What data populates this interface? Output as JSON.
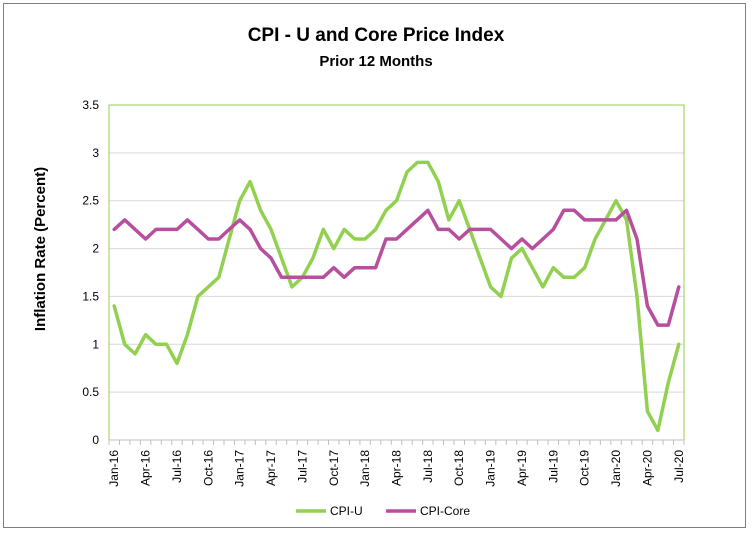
{
  "chart_data": {
    "type": "line",
    "title": "CPI - U and Core Price Index",
    "subtitle": "Prior 12 Months",
    "xlabel": "",
    "ylabel": "Inflation Rate (Percent)",
    "ylim": [
      0,
      3.5
    ],
    "yticks": [
      "0",
      "0.5",
      "1",
      "1.5",
      "2",
      "2.5",
      "3",
      "3.5"
    ],
    "grid": true,
    "legend": "bottom",
    "x": [
      "Jan-16",
      "Feb-16",
      "Mar-16",
      "Apr-16",
      "May-16",
      "Jun-16",
      "Jul-16",
      "Aug-16",
      "Sep-16",
      "Oct-16",
      "Nov-16",
      "Dec-16",
      "Jan-17",
      "Feb-17",
      "Mar-17",
      "Apr-17",
      "May-17",
      "Jun-17",
      "Jul-17",
      "Aug-17",
      "Sep-17",
      "Oct-17",
      "Nov-17",
      "Dec-17",
      "Jan-18",
      "Feb-18",
      "Mar-18",
      "Apr-18",
      "May-18",
      "Jun-18",
      "Jul-18",
      "Aug-18",
      "Sep-18",
      "Oct-18",
      "Nov-18",
      "Dec-18",
      "Jan-19",
      "Feb-19",
      "Mar-19",
      "Apr-19",
      "May-19",
      "Jun-19",
      "Jul-19",
      "Aug-19",
      "Sep-19",
      "Oct-19",
      "Nov-19",
      "Dec-19",
      "Jan-20",
      "Feb-20",
      "Mar-20",
      "Apr-20",
      "May-20",
      "Jun-20",
      "Jul-20"
    ],
    "xtick_labels": [
      "Jan-16",
      "Apr-16",
      "Jul-16",
      "Oct-16",
      "Jan-17",
      "Apr-17",
      "Jul-17",
      "Oct-17",
      "Jan-18",
      "Apr-18",
      "Jul-18",
      "Oct-18",
      "Jan-19",
      "Apr-19",
      "Jul-19",
      "Oct-19",
      "Jan-20",
      "Apr-20",
      "Jul-20"
    ],
    "series": [
      {
        "name": "CPI-U",
        "color": "#92d050",
        "values": [
          1.4,
          1.0,
          0.9,
          1.1,
          1.0,
          1.0,
          0.8,
          1.1,
          1.5,
          1.6,
          1.7,
          2.1,
          2.5,
          2.7,
          2.4,
          2.2,
          1.9,
          1.6,
          1.7,
          1.9,
          2.2,
          2.0,
          2.2,
          2.1,
          2.1,
          2.2,
          2.4,
          2.5,
          2.8,
          2.9,
          2.9,
          2.7,
          2.3,
          2.5,
          2.2,
          1.9,
          1.6,
          1.5,
          1.9,
          2.0,
          1.8,
          1.6,
          1.8,
          1.7,
          1.7,
          1.8,
          2.1,
          2.3,
          2.5,
          2.3,
          1.5,
          0.3,
          0.1,
          0.6,
          1.0
        ]
      },
      {
        "name": "CPI-Core",
        "color": "#b84f9e",
        "values": [
          2.2,
          2.3,
          2.2,
          2.1,
          2.2,
          2.2,
          2.2,
          2.3,
          2.2,
          2.1,
          2.1,
          2.2,
          2.3,
          2.2,
          2.0,
          1.9,
          1.7,
          1.7,
          1.7,
          1.7,
          1.7,
          1.8,
          1.7,
          1.8,
          1.8,
          1.8,
          2.1,
          2.1,
          2.2,
          2.3,
          2.4,
          2.2,
          2.2,
          2.1,
          2.2,
          2.2,
          2.2,
          2.1,
          2.0,
          2.1,
          2.0,
          2.1,
          2.2,
          2.4,
          2.4,
          2.3,
          2.3,
          2.3,
          2.3,
          2.4,
          2.1,
          1.4,
          1.2,
          1.2,
          1.6
        ]
      }
    ]
  }
}
